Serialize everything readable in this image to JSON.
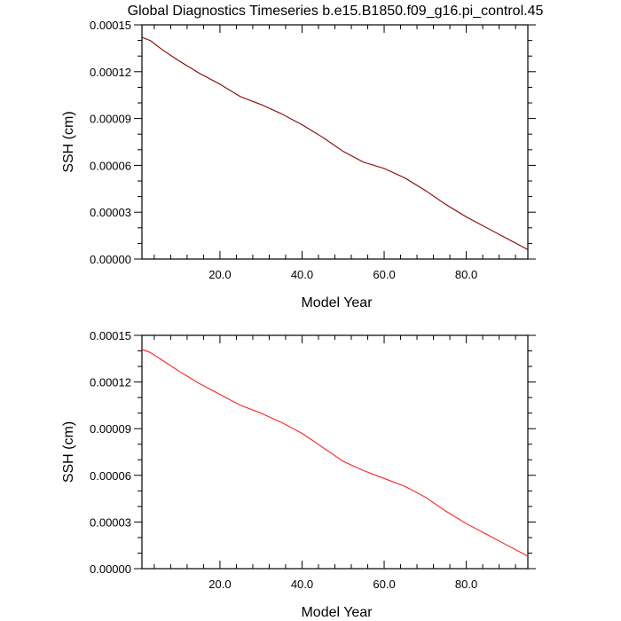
{
  "figure": {
    "title": "Global Diagnostics Timeseries b.e15.B1850.f09_g16.pi_control.45"
  },
  "chart_data": [
    {
      "type": "line",
      "title": "Global Diagnostics Timeseries b.e15.B1850.f09_g16.pi_control.45",
      "xlabel": "Model Year",
      "ylabel": "SSH (cm)",
      "xlim": [
        1,
        95
      ],
      "ylim": [
        0.0,
        0.00015
      ],
      "xticks": [
        20,
        40,
        60,
        80
      ],
      "xtick_labels": [
        "20.0",
        "40.0",
        "60.0",
        "80.0"
      ],
      "yticks": [
        0.0,
        3e-05,
        6e-05,
        9e-05,
        0.00012,
        0.00015
      ],
      "ytick_labels": [
        "0.00000",
        "0.00003",
        "0.00006",
        "0.00009",
        "0.00012",
        "0.00015"
      ],
      "grid": false,
      "series": [
        {
          "color": "#8b0000",
          "x": [
            1,
            3,
            6,
            10,
            15,
            20,
            25,
            30,
            35,
            40,
            45,
            50,
            55,
            60,
            65,
            70,
            75,
            80,
            85,
            90,
            95
          ],
          "y": [
            0.000142,
            0.00014,
            0.000134,
            0.000127,
            0.000119,
            0.000112,
            0.000104,
            9.9e-05,
            9.3e-05,
            8.6e-05,
            7.8e-05,
            6.9e-05,
            6.2e-05,
            5.8e-05,
            5.2e-05,
            4.4e-05,
            3.5e-05,
            2.7e-05,
            2e-05,
            1.3e-05,
            6e-06
          ]
        }
      ]
    },
    {
      "type": "line",
      "title": "",
      "xlabel": "Model Year",
      "ylabel": "SSH (cm)",
      "xlim": [
        1,
        95
      ],
      "ylim": [
        0.0,
        0.00015
      ],
      "xticks": [
        20,
        40,
        60,
        80
      ],
      "xtick_labels": [
        "20.0",
        "40.0",
        "60.0",
        "80.0"
      ],
      "yticks": [
        0.0,
        3e-05,
        6e-05,
        9e-05,
        0.00012,
        0.00015
      ],
      "ytick_labels": [
        "0.00000",
        "0.00003",
        "0.00006",
        "0.00009",
        "0.00012",
        "0.00015"
      ],
      "grid": false,
      "series": [
        {
          "color": "#ff2020",
          "x": [
            1,
            3,
            6,
            10,
            15,
            20,
            25,
            30,
            35,
            40,
            45,
            50,
            55,
            60,
            65,
            70,
            75,
            80,
            85,
            90,
            95
          ],
          "y": [
            0.000141,
            0.000139,
            0.000134,
            0.000127,
            0.000119,
            0.000112,
            0.000105,
            0.0001,
            9.4e-05,
            8.7e-05,
            7.8e-05,
            6.9e-05,
            6.3e-05,
            5.8e-05,
            5.3e-05,
            4.6e-05,
            3.7e-05,
            2.9e-05,
            2.2e-05,
            1.5e-05,
            8e-06
          ]
        }
      ]
    }
  ]
}
